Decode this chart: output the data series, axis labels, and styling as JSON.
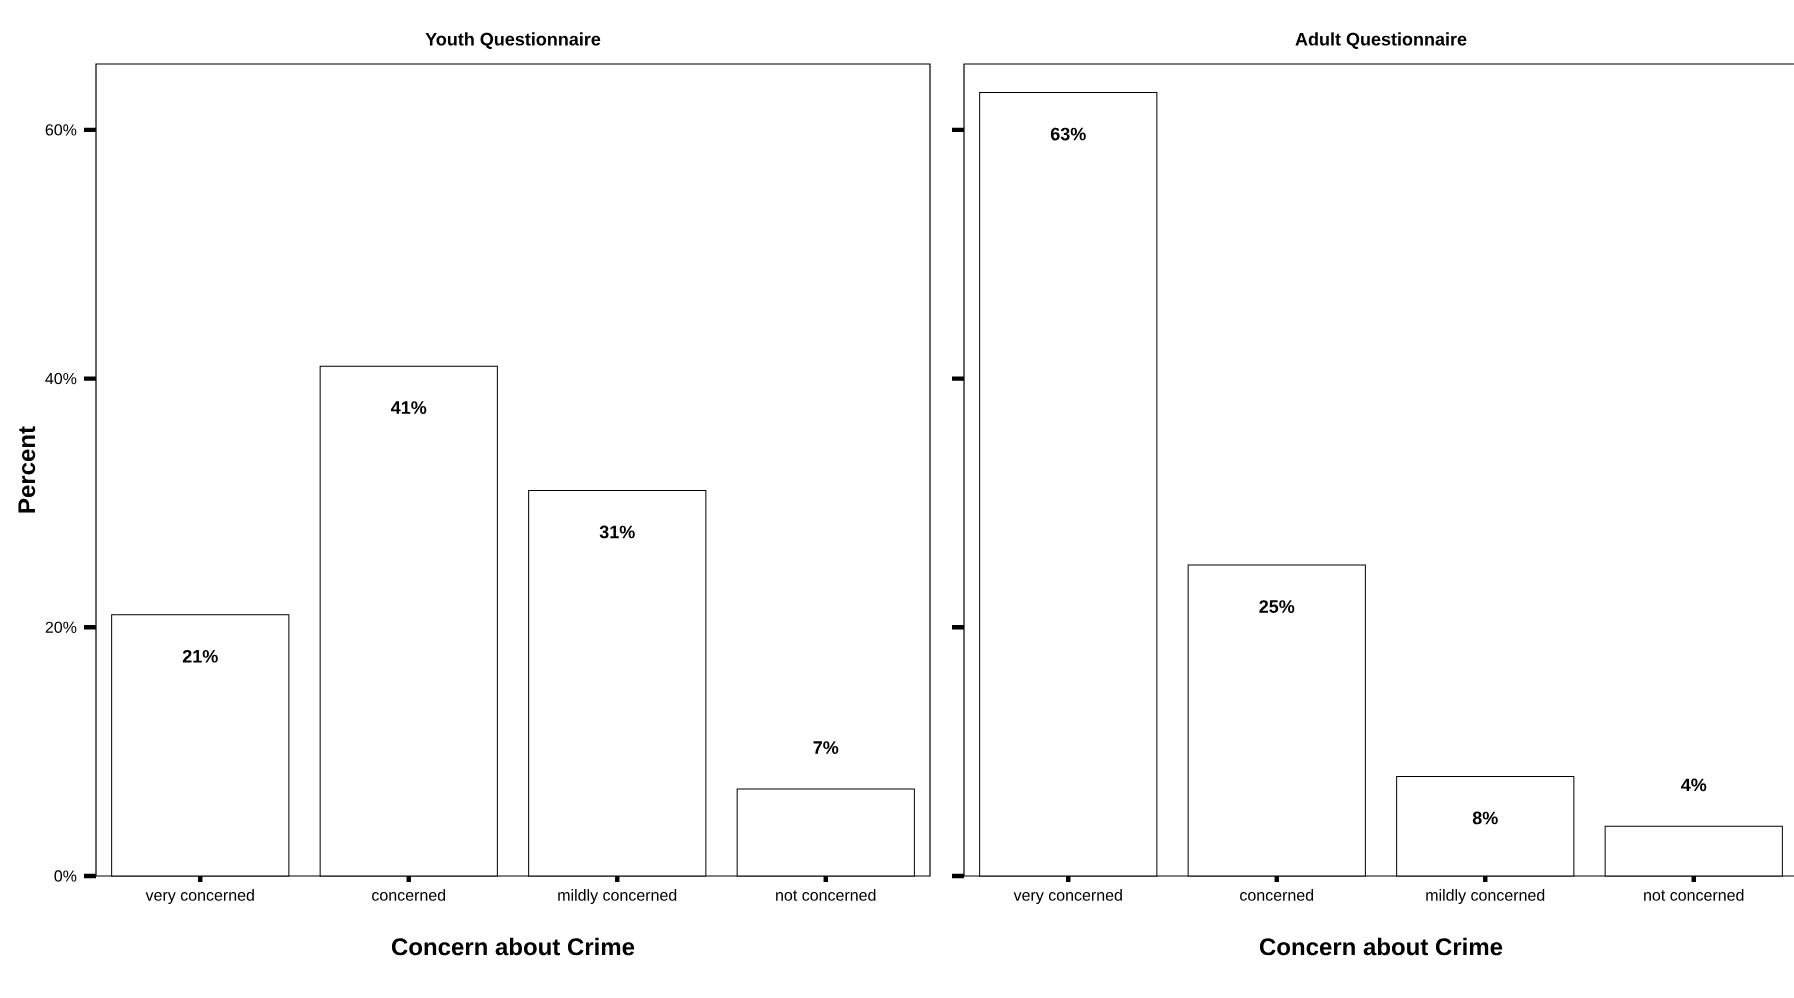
{
  "chart_data": [
    {
      "type": "bar",
      "title": "Youth Questionnaire",
      "xlabel": "Concern about Crime",
      "ylabel": "Percent",
      "categories": [
        "very concerned",
        "concerned",
        "mildly concerned",
        "not concerned"
      ],
      "values": [
        21,
        41,
        31,
        7
      ],
      "color": "#ffffff",
      "data_labels": true,
      "value_labels": [
        "21%",
        "41%",
        "31%",
        "7%"
      ],
      "ylim": [
        0,
        65.3
      ],
      "yticks": [
        {
          "value": 0,
          "label": "0%"
        },
        {
          "value": 20,
          "label": "20%"
        },
        {
          "value": 40,
          "label": "40%"
        },
        {
          "value": 60,
          "label": "60%"
        }
      ],
      "grid": false
    },
    {
      "type": "bar",
      "title": "Adult Questionnaire",
      "xlabel": "Concern about Crime",
      "categories": [
        "very concerned",
        "concerned",
        "mildly concerned",
        "not concerned"
      ],
      "values": [
        63,
        25,
        8,
        4
      ],
      "color": "#ffffff",
      "data_labels": true,
      "value_labels": [
        "63%",
        "25%",
        "8%",
        "4%"
      ],
      "ylim": [
        0,
        65.3
      ],
      "yticks": [
        0,
        20,
        40,
        60
      ],
      "tick_labels": "x",
      "grid": false
    }
  ]
}
